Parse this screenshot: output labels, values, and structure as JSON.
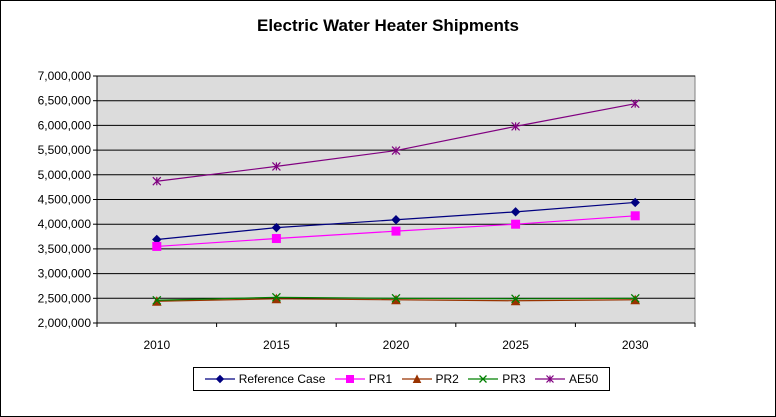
{
  "chart_data": {
    "type": "line",
    "title": "Electric Water Heater Shipments",
    "xlabel": "",
    "ylabel": "",
    "categories": [
      "2010",
      "2015",
      "2020",
      "2025",
      "2030"
    ],
    "ylim": [
      2000000,
      7000000
    ],
    "y_ticks": [
      "2,000,000",
      "2,500,000",
      "3,000,000",
      "3,500,000",
      "4,000,000",
      "4,500,000",
      "5,000,000",
      "5,500,000",
      "6,000,000",
      "6,500,000",
      "7,000,000"
    ],
    "grid": true,
    "legend_position": "bottom",
    "series": [
      {
        "name": "Reference Case",
        "values": [
          3690000,
          3930000,
          4090000,
          4250000,
          4440000
        ],
        "color": "#000080",
        "marker": "diamond"
      },
      {
        "name": "PR1",
        "values": [
          3550000,
          3710000,
          3860000,
          4000000,
          4170000
        ],
        "color": "#FF00FF",
        "marker": "square"
      },
      {
        "name": "PR2",
        "values": [
          2440000,
          2490000,
          2470000,
          2450000,
          2470000
        ],
        "color": "#993300",
        "marker": "triangle"
      },
      {
        "name": "PR3",
        "values": [
          2460000,
          2520000,
          2500000,
          2490000,
          2500000
        ],
        "color": "#008000",
        "marker": "x"
      },
      {
        "name": "AE50",
        "values": [
          4870000,
          5170000,
          5490000,
          5980000,
          6440000
        ],
        "color": "#800080",
        "marker": "star"
      }
    ]
  }
}
